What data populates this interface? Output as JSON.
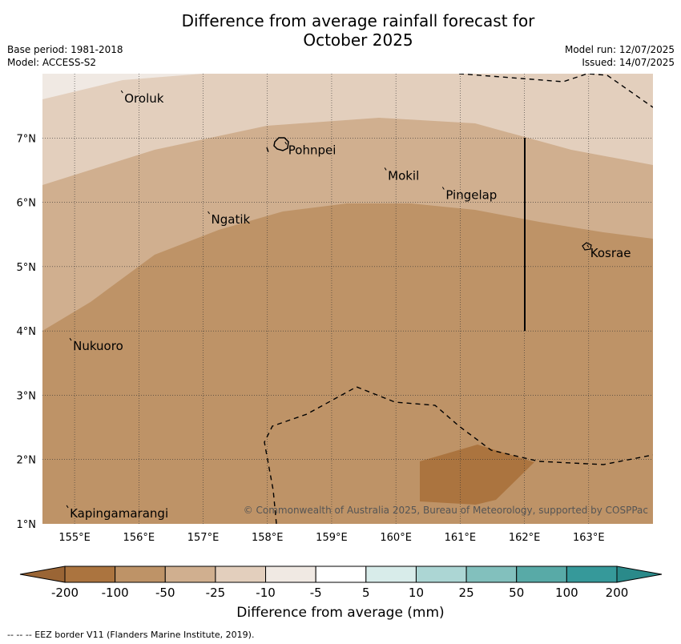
{
  "title_line1": "Difference from average rainfall forecast for",
  "title_line2": "October 2025",
  "meta_left": {
    "base_period": "Base period: 1981-2018",
    "model": "Model: ACCESS-S2"
  },
  "meta_right": {
    "model_run": "Model run: 12/07/2025",
    "issued": "Issued: 14/07/2025"
  },
  "map": {
    "lon_range": [
      154.5,
      164.0
    ],
    "lat_range": [
      1.0,
      8.0
    ],
    "lon_ticks": [
      "155°E",
      "156°E",
      "157°E",
      "158°E",
      "159°E",
      "160°E",
      "161°E",
      "162°E",
      "163°E"
    ],
    "lat_ticks": [
      "1°N",
      "2°N",
      "3°N",
      "4°N",
      "5°N",
      "6°N",
      "7°N"
    ],
    "places": [
      {
        "name": "Oroluk",
        "lon": 155.75,
        "lat": 7.7
      },
      {
        "name": "Pohnpei",
        "lon": 158.3,
        "lat": 6.9
      },
      {
        "name": "Mokil",
        "lon": 159.85,
        "lat": 6.5
      },
      {
        "name": "Pingelap",
        "lon": 160.75,
        "lat": 6.2
      },
      {
        "name": "Ngatik",
        "lon": 157.1,
        "lat": 5.82
      },
      {
        "name": "Kosrae",
        "lon": 163.0,
        "lat": 5.3
      },
      {
        "name": "Nukuoro",
        "lon": 154.95,
        "lat": 3.85
      },
      {
        "name": "Kapingamarangi",
        "lon": 154.9,
        "lat": 1.25
      }
    ],
    "copyright": "© Commonwealth of Australia 2025, Bureau of Meteorology, supported by COSPPac",
    "colors": {
      "lt_-200": "#ab743f",
      "-200_-100": "#be9367",
      "-100_-50": "#d0af8f",
      "-50_-25": "#e3cfbd",
      "-25_-10": "#f0e9e3"
    }
  },
  "colorbar": {
    "labels": [
      "-200",
      "-100",
      "-50",
      "-25",
      "-10",
      "-5",
      "5",
      "10",
      "25",
      "50",
      "100",
      "200"
    ],
    "colors": [
      "#ab743f",
      "#be9367",
      "#d0af8f",
      "#e3cfbd",
      "#f0e9e3",
      "#ffffff",
      "#d8ecea",
      "#acd6d4",
      "#82c0bd",
      "#58aaa7",
      "#36999a"
    ],
    "extend_low_color": "#9a6535",
    "extend_high_color": "#2a8a8a"
  },
  "axis_title": "Difference from average (mm)",
  "footnote": "--  --  -- EEZ border V11 (Flanders Marine Institute, 2019)."
}
